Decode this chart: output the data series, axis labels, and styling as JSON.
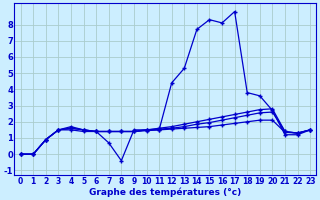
{
  "xlabel": "Graphe des températures (°c)",
  "x": [
    0,
    1,
    2,
    3,
    4,
    5,
    6,
    7,
    8,
    9,
    10,
    11,
    12,
    13,
    14,
    15,
    16,
    17,
    18,
    19,
    20,
    21,
    22,
    23
  ],
  "line1": [
    0.0,
    0.0,
    0.9,
    1.5,
    1.7,
    1.5,
    1.4,
    0.7,
    -0.4,
    1.5,
    1.5,
    1.5,
    4.4,
    5.3,
    7.7,
    8.3,
    8.1,
    8.8,
    3.8,
    3.6,
    2.7,
    1.2,
    1.2,
    1.5
  ],
  "line2": [
    0.0,
    0.0,
    0.9,
    1.5,
    1.5,
    1.4,
    1.4,
    1.4,
    1.4,
    1.4,
    1.45,
    1.5,
    1.55,
    1.6,
    1.65,
    1.7,
    1.8,
    1.9,
    2.0,
    2.1,
    2.1,
    1.35,
    1.3,
    1.5
  ],
  "line3": [
    0.0,
    0.0,
    0.9,
    1.5,
    1.6,
    1.5,
    1.4,
    1.4,
    1.4,
    1.4,
    1.5,
    1.6,
    1.7,
    1.85,
    2.0,
    2.15,
    2.3,
    2.45,
    2.6,
    2.75,
    2.8,
    1.4,
    1.3,
    1.5
  ],
  "line4": [
    0.0,
    0.0,
    0.9,
    1.5,
    1.6,
    1.5,
    1.4,
    1.4,
    1.4,
    1.4,
    1.5,
    1.55,
    1.6,
    1.7,
    1.85,
    1.95,
    2.1,
    2.25,
    2.4,
    2.55,
    2.6,
    1.4,
    1.3,
    1.5
  ],
  "ylim": [
    -1.3,
    9.3
  ],
  "yticks": [
    -1,
    0,
    1,
    2,
    3,
    4,
    5,
    6,
    7,
    8
  ],
  "bg_color": "#cceeff",
  "grid_color": "#aacccc",
  "line_color": "#0000cc",
  "spine_color": "#0000cc",
  "marker": "+",
  "line_width": 0.9,
  "marker_size": 3.5,
  "tick_fontsize": 5.5,
  "label_fontsize": 6.5
}
